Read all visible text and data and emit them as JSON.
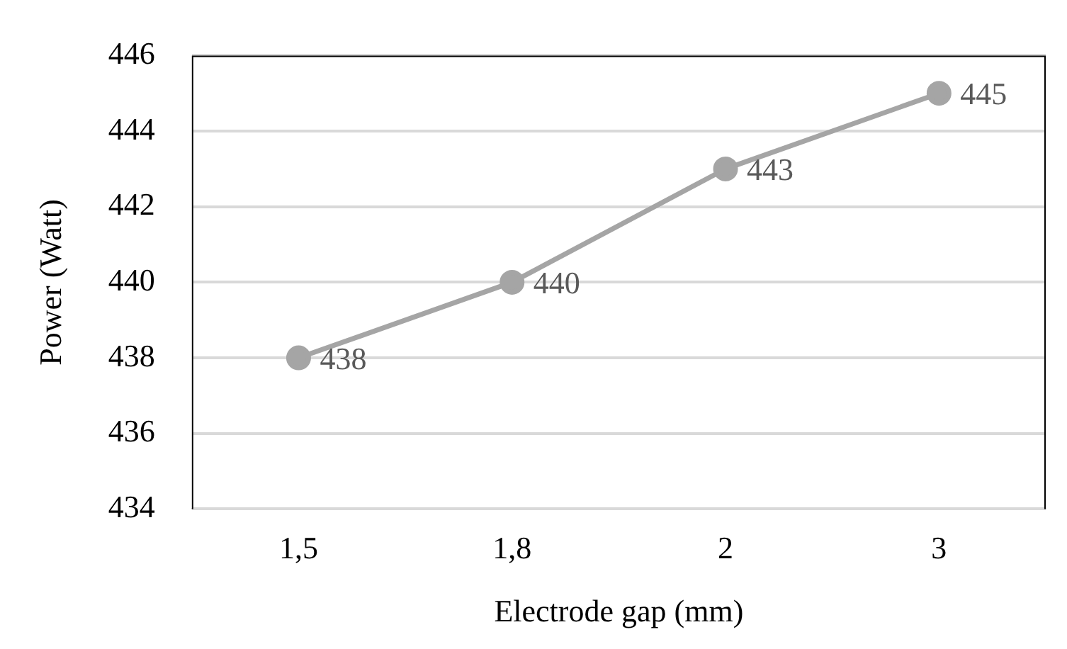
{
  "chart_data": {
    "type": "line",
    "xlabel": "Electrode gap (mm)",
    "ylabel": "Power (Watt)",
    "categories": [
      "1,5",
      "1,8",
      "2",
      "3"
    ],
    "series": [
      {
        "color": "#a5a5a5",
        "values": [
          438,
          440,
          443,
          445
        ]
      }
    ],
    "ylim": [
      434,
      446
    ],
    "yticks": [
      434,
      436,
      438,
      440,
      442,
      444,
      446
    ],
    "grid": "y",
    "legend": false,
    "marker": "circle",
    "line_style": "solid",
    "data_labels": true
  }
}
